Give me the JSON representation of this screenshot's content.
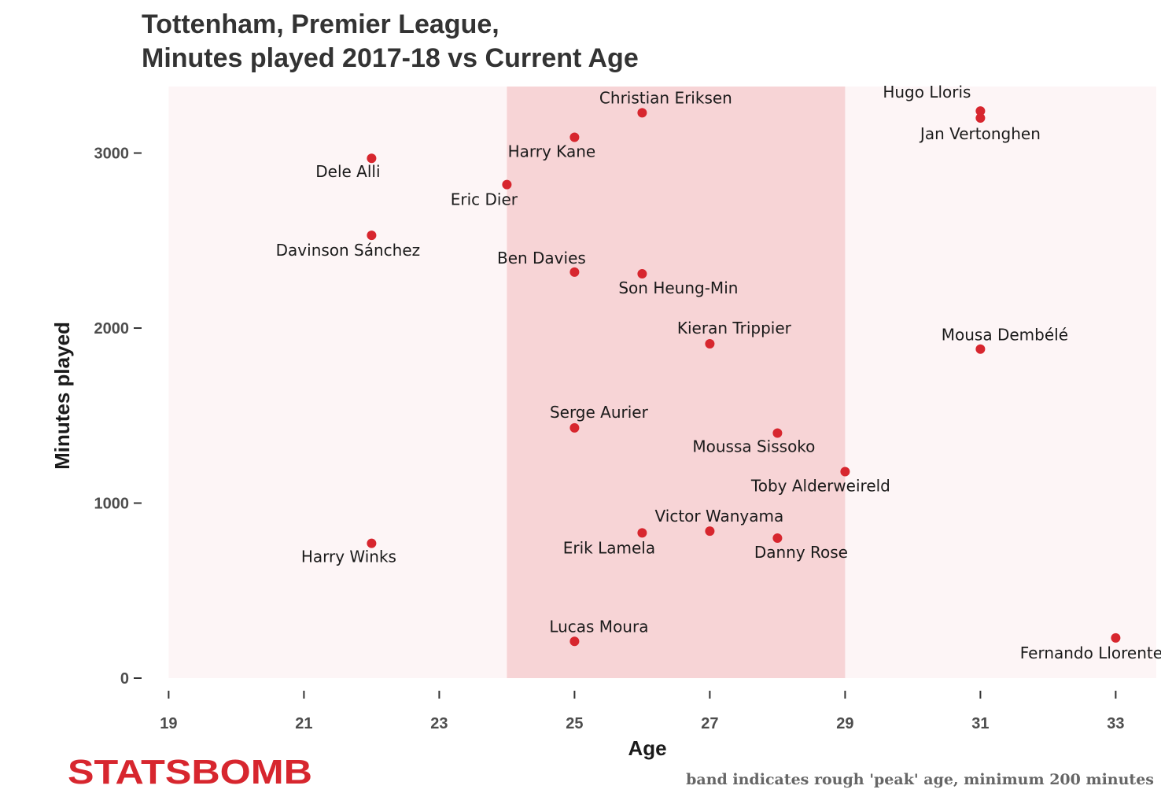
{
  "chart_data": {
    "type": "scatter",
    "title": [
      "Tottenham, Premier League,",
      "Minutes played 2017-18 vs Current Age"
    ],
    "xlabel": "Age",
    "ylabel": "Minutes played",
    "xlim": [
      18.6,
      33.6
    ],
    "ylim": [
      0,
      3380
    ],
    "xticks": [
      19,
      21,
      23,
      25,
      27,
      29,
      31,
      33
    ],
    "yticks": [
      0,
      1000,
      2000,
      3000
    ],
    "grid": false,
    "band": {
      "x_from": 24,
      "x_to": 29,
      "meaning": "rough 'peak' age"
    },
    "point_color": "#d7262e",
    "band_color": "#f7d4d6",
    "panel_color": "#fdf5f6",
    "points": [
      {
        "name": "Christian Eriksen",
        "age": 26,
        "minutes": 3230
      },
      {
        "name": "Hugo Lloris",
        "age": 31,
        "minutes": 3240
      },
      {
        "name": "Jan Vertonghen",
        "age": 31,
        "minutes": 3200
      },
      {
        "name": "Harry Kane",
        "age": 25,
        "minutes": 3090
      },
      {
        "name": "Dele Alli",
        "age": 22,
        "minutes": 2970
      },
      {
        "name": "Eric Dier",
        "age": 24,
        "minutes": 2820
      },
      {
        "name": "Davinson Sánchez",
        "age": 22,
        "minutes": 2530
      },
      {
        "name": "Ben Davies",
        "age": 25,
        "minutes": 2320
      },
      {
        "name": "Son Heung-Min",
        "age": 26,
        "minutes": 2310
      },
      {
        "name": "Kieran Trippier",
        "age": 27,
        "minutes": 1910
      },
      {
        "name": "Mousa Dembélé",
        "age": 31,
        "minutes": 1880
      },
      {
        "name": "Serge Aurier",
        "age": 25,
        "minutes": 1430
      },
      {
        "name": "Moussa Sissoko",
        "age": 28,
        "minutes": 1400
      },
      {
        "name": "Toby Alderweireld",
        "age": 29,
        "minutes": 1180
      },
      {
        "name": "Victor Wanyama",
        "age": 27,
        "minutes": 840
      },
      {
        "name": "Erik Lamela",
        "age": 26,
        "minutes": 830
      },
      {
        "name": "Danny Rose",
        "age": 28,
        "minutes": 800
      },
      {
        "name": "Harry Winks",
        "age": 22,
        "minutes": 770
      },
      {
        "name": "Lucas Moura",
        "age": 25,
        "minutes": 210
      },
      {
        "name": "Fernando Llorente",
        "age": 33,
        "minutes": 230
      }
    ]
  },
  "caption": "band indicates rough 'peak' age, minimum 200 minutes",
  "logo": {
    "text": "STATSBOMB",
    "color": "#d7262e"
  }
}
